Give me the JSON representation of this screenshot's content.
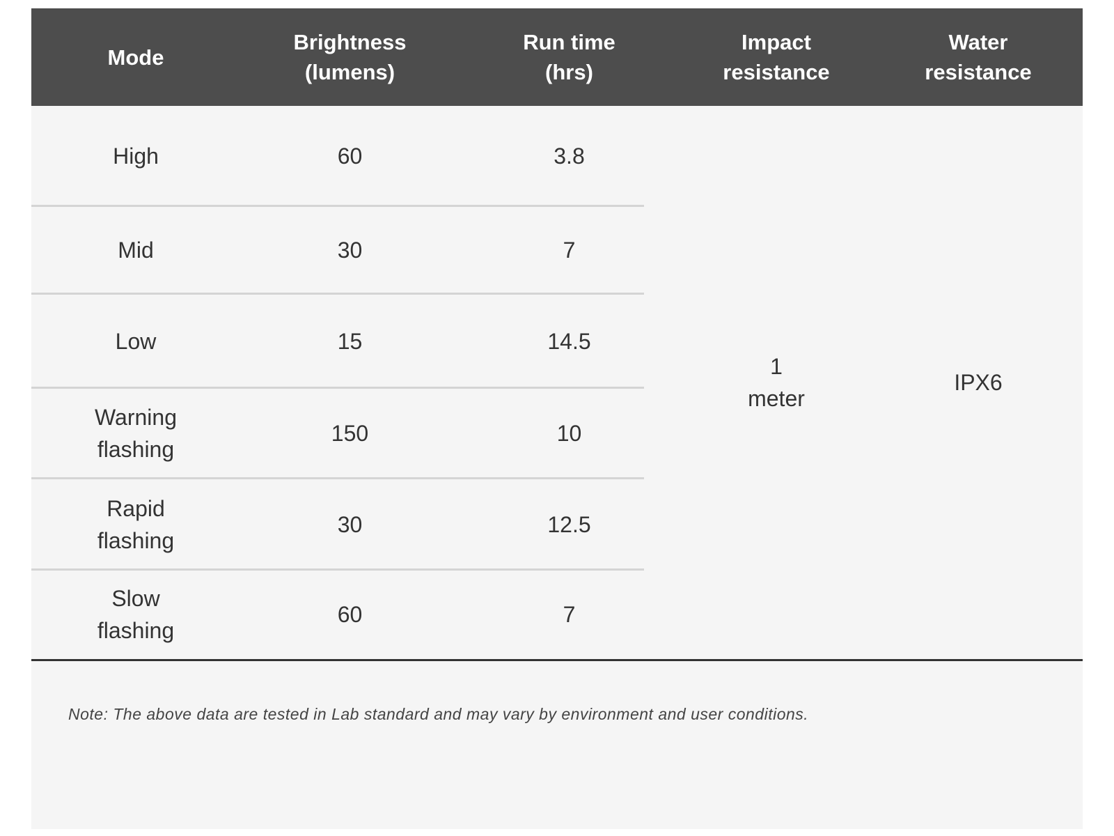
{
  "table": {
    "headers": [
      "Mode",
      "Brightness\n(lumens)",
      "Run time\n(hrs)",
      "Impact\nresistance",
      "Water\nresistance"
    ],
    "rows": [
      [
        "High",
        "60",
        "3.8"
      ],
      [
        "Mid",
        "30",
        "7"
      ],
      [
        "Low",
        "15",
        "14.5"
      ],
      [
        "Warning\nflashing",
        "150",
        "10"
      ],
      [
        "Rapid\nflashing",
        "30",
        "12.5"
      ],
      [
        "Slow\nflashing",
        "60",
        "7"
      ]
    ],
    "merged": [
      "1\nmeter",
      "IPX6"
    ]
  },
  "note": "Note: The above data are tested in Lab standard and may vary by environment and user conditions."
}
